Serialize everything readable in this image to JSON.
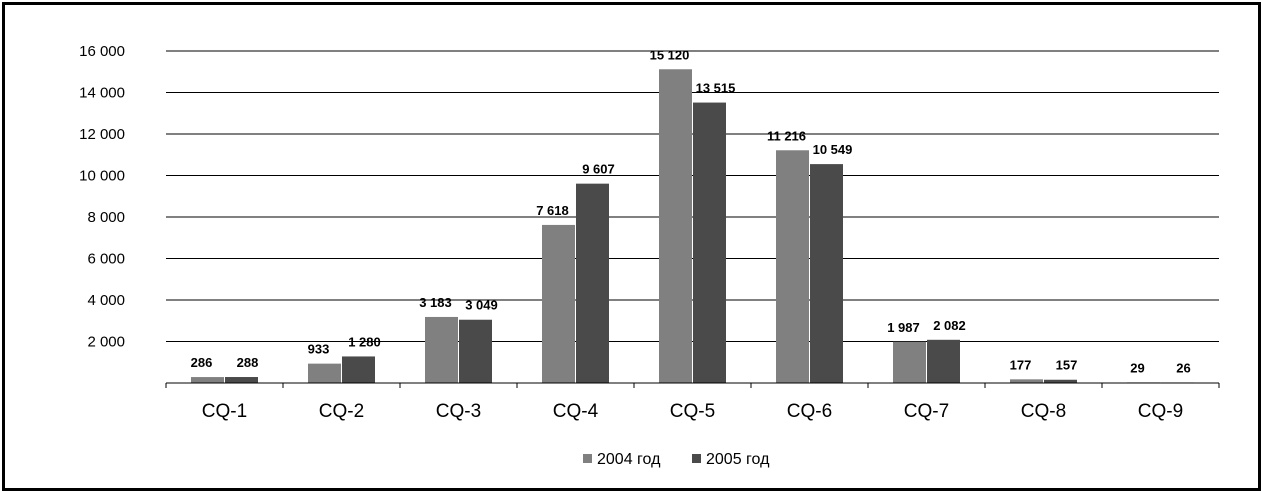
{
  "chart_data": {
    "type": "bar",
    "categories": [
      "CQ-1",
      "CQ-2",
      "CQ-3",
      "CQ-4",
      "CQ-5",
      "CQ-6",
      "CQ-7",
      "CQ-8",
      "CQ-9"
    ],
    "series": [
      {
        "name": "2004 год",
        "color": "#808080",
        "values": [
          286,
          933,
          3183,
          7618,
          15120,
          11216,
          1987,
          177,
          29
        ],
        "labels": [
          "286",
          "933",
          "3 183",
          "7 618",
          "15 120",
          "11 216",
          "1 987",
          "177",
          "29"
        ]
      },
      {
        "name": "2005 год",
        "color": "#4a4a4a",
        "values": [
          288,
          1280,
          3049,
          9607,
          13515,
          10549,
          2082,
          157,
          26
        ],
        "labels": [
          "288",
          "1 280",
          "3 049",
          "9 607",
          "13 515",
          "10 549",
          "2 082",
          "157",
          "26"
        ]
      }
    ],
    "y_ticks": [
      2000,
      4000,
      6000,
      8000,
      10000,
      12000,
      14000,
      16000
    ],
    "y_tick_labels": [
      "2 000",
      "4 000",
      "6 000",
      "8 000",
      "10 000",
      "12 000",
      "14 000",
      "16 000"
    ],
    "ylim": [
      0,
      16000
    ],
    "grid": true,
    "legend": "bottom",
    "title": "",
    "xlabel": "",
    "ylabel": ""
  }
}
